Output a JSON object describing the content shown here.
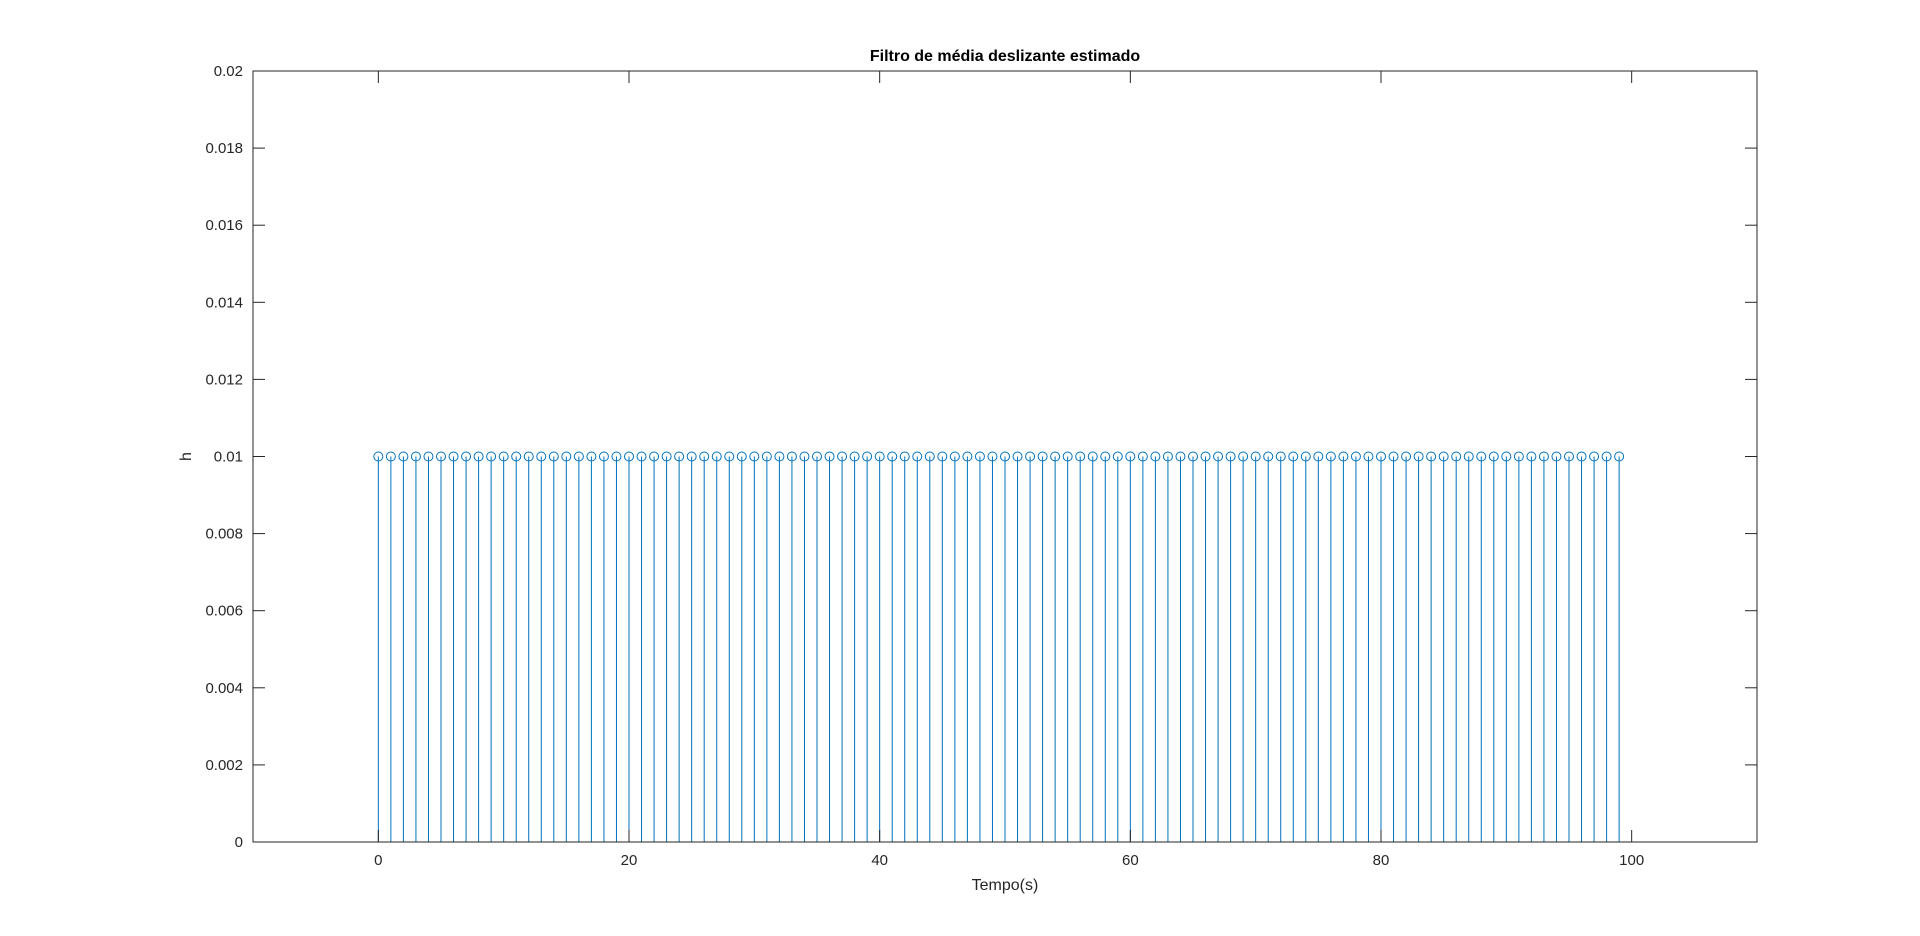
{
  "chart_data": {
    "type": "stem",
    "title": "Filtro de média deslizante estimado",
    "xlabel": "Tempo(s)",
    "ylabel": "h",
    "xlim": [
      -10,
      110
    ],
    "ylim": [
      0,
      0.02
    ],
    "x_ticks": [
      0,
      20,
      40,
      60,
      80,
      100
    ],
    "x_tick_labels": [
      "0",
      "20",
      "40",
      "60",
      "80",
      "100"
    ],
    "y_ticks": [
      0,
      0.002,
      0.004,
      0.006,
      0.008,
      0.01,
      0.012,
      0.014,
      0.016,
      0.018,
      0.02
    ],
    "y_tick_labels": [
      "0",
      "0.002",
      "0.004",
      "0.006",
      "0.008",
      "0.01",
      "0.012",
      "0.014",
      "0.016",
      "0.018",
      "0.02"
    ],
    "grid": false,
    "series": [
      {
        "x_start": 0,
        "x_end": 99,
        "x_step": 1,
        "value": 0.01,
        "color": "#0072BD",
        "marker": "circle"
      }
    ]
  }
}
